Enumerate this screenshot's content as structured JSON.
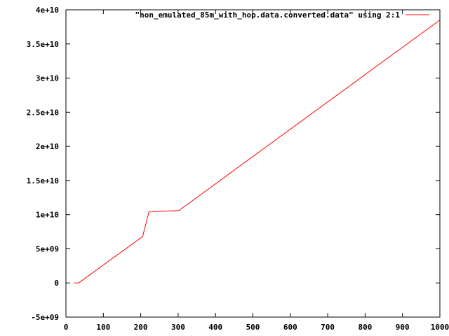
{
  "chart_data": {
    "type": "line",
    "title": "",
    "xlabel": "",
    "ylabel": "",
    "xlim": [
      0,
      1000
    ],
    "ylim": [
      -5000000000.0,
      40000000000.0
    ],
    "x_ticks": [
      0,
      100,
      200,
      300,
      400,
      500,
      600,
      700,
      800,
      900,
      1000
    ],
    "x_tick_labels": [
      "0",
      "100",
      "200",
      "300",
      "400",
      "500",
      "600",
      "700",
      "800",
      "900",
      "1000"
    ],
    "y_ticks": [
      -5000000000.0,
      0,
      5000000000.0,
      10000000000.0,
      15000000000.0,
      20000000000.0,
      25000000000.0,
      30000000000.0,
      35000000000.0,
      40000000000.0
    ],
    "y_tick_labels": [
      "-5e+09",
      "0",
      "5e+09",
      "1e+10",
      "1.5e+10",
      "2e+10",
      "2.5e+10",
      "3e+10",
      "3.5e+10",
      "4e+10"
    ],
    "grid": false,
    "legend_position": "top-right",
    "series": [
      {
        "name": "\"non_emulated_85m_with_hop.data.converted.data\" using 2:1",
        "color": "#ff0000",
        "x": [
          21,
          34,
          205,
          222,
          260,
          302,
          1000
        ],
        "y": [
          0,
          0,
          6800000000.0,
          10400000000.0,
          10500000000.0,
          10600000000.0,
          38500000000.0
        ]
      }
    ]
  }
}
